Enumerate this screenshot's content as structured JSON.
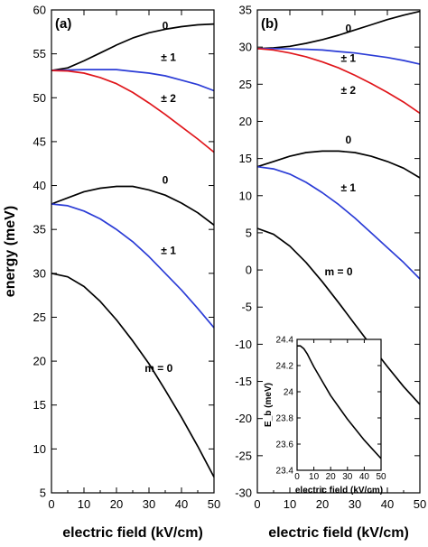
{
  "colors": {
    "black": "#000000",
    "blue": "#2b3cd6",
    "red": "#e0161b"
  },
  "chart_data": [
    {
      "type": "line",
      "panel_label": "(a)",
      "xlabel": "electric field (kV/cm)",
      "ylabel": "energy (meV)",
      "xlim": [
        0,
        50
      ],
      "ylim": [
        5,
        60
      ],
      "xticks": [
        0,
        10,
        20,
        30,
        40,
        50
      ],
      "yticks": [
        5,
        10,
        15,
        20,
        25,
        30,
        35,
        40,
        45,
        50,
        55,
        60
      ],
      "grid": false,
      "series": [
        {
          "name": "0",
          "color": "#000000",
          "label_at": [
            35,
            57.8
          ],
          "x": [
            0,
            5,
            10,
            15,
            20,
            25,
            30,
            35,
            40,
            45,
            50
          ],
          "y": [
            53.1,
            53.4,
            54.2,
            55.1,
            56.0,
            56.8,
            57.4,
            57.8,
            58.1,
            58.3,
            58.4
          ]
        },
        {
          "name": "± 1",
          "color": "#2b3cd6",
          "label_at": [
            36,
            54.2
          ],
          "x": [
            0,
            5,
            10,
            15,
            20,
            25,
            30,
            35,
            40,
            45,
            50
          ],
          "y": [
            53.1,
            53.15,
            53.2,
            53.2,
            53.2,
            53.0,
            52.8,
            52.5,
            52.0,
            51.5,
            50.8
          ]
        },
        {
          "name": "± 2",
          "color": "#e0161b",
          "label_at": [
            36,
            49.5
          ],
          "x": [
            0,
            5,
            10,
            15,
            20,
            25,
            30,
            35,
            40,
            45,
            50
          ],
          "y": [
            53.1,
            53.05,
            52.8,
            52.3,
            51.6,
            50.6,
            49.4,
            48.1,
            46.7,
            45.3,
            43.8
          ]
        },
        {
          "name": "0",
          "color": "#000000",
          "label_at": [
            35,
            40.2
          ],
          "x": [
            0,
            5,
            10,
            15,
            20,
            25,
            30,
            35,
            40,
            45,
            50
          ],
          "y": [
            37.9,
            38.6,
            39.3,
            39.7,
            39.9,
            39.9,
            39.5,
            38.9,
            38.0,
            36.9,
            35.5
          ]
        },
        {
          "name": "± 1",
          "color": "#2b3cd6",
          "label_at": [
            36,
            32.2
          ],
          "x": [
            0,
            5,
            10,
            15,
            20,
            25,
            30,
            35,
            40,
            45,
            50
          ],
          "y": [
            37.9,
            37.7,
            37.1,
            36.2,
            35.0,
            33.6,
            31.9,
            30.0,
            28.1,
            26.0,
            23.8
          ]
        },
        {
          "name": "m = 0",
          "color": "#000000",
          "label_at": [
            33,
            18.8
          ],
          "x": [
            0,
            5,
            10,
            15,
            20,
            25,
            30,
            35,
            40,
            45,
            50
          ],
          "y": [
            30.0,
            29.6,
            28.5,
            26.8,
            24.7,
            22.3,
            19.7,
            16.7,
            13.6,
            10.3,
            6.8
          ]
        }
      ]
    },
    {
      "type": "line",
      "panel_label": "(b)",
      "xlabel": "electric field (kV/cm)",
      "ylabel": "",
      "xlim": [
        0,
        50
      ],
      "ylim": [
        -30,
        35
      ],
      "xticks": [
        0,
        10,
        20,
        30,
        40,
        50
      ],
      "yticks": [
        -30,
        -25,
        -20,
        -15,
        -10,
        -5,
        0,
        5,
        10,
        15,
        20,
        25,
        30,
        35
      ],
      "grid": false,
      "series": [
        {
          "name": "0",
          "color": "#000000",
          "label_at": [
            28,
            32.0
          ],
          "x": [
            0,
            5,
            10,
            15,
            20,
            25,
            30,
            35,
            40,
            45,
            50
          ],
          "y": [
            29.8,
            29.9,
            30.1,
            30.5,
            31.0,
            31.6,
            32.3,
            33.0,
            33.7,
            34.3,
            34.8
          ]
        },
        {
          "name": "± 1",
          "color": "#2b3cd6",
          "label_at": [
            28,
            28.0
          ],
          "x": [
            0,
            5,
            10,
            15,
            20,
            25,
            30,
            35,
            40,
            45,
            50
          ],
          "y": [
            29.8,
            29.8,
            29.75,
            29.7,
            29.6,
            29.4,
            29.2,
            28.9,
            28.6,
            28.2,
            27.7
          ]
        },
        {
          "name": "± 2",
          "color": "#e0161b",
          "label_at": [
            28,
            23.7
          ],
          "x": [
            0,
            5,
            10,
            15,
            20,
            25,
            30,
            35,
            40,
            45,
            50
          ],
          "y": [
            29.8,
            29.6,
            29.2,
            28.7,
            28.0,
            27.2,
            26.2,
            25.1,
            23.9,
            22.6,
            21.1
          ]
        },
        {
          "name": "0",
          "color": "#000000",
          "label_at": [
            28,
            17.0
          ],
          "x": [
            0,
            5,
            10,
            15,
            20,
            25,
            30,
            35,
            40,
            45,
            50
          ],
          "y": [
            13.9,
            14.6,
            15.3,
            15.8,
            16.0,
            16.0,
            15.8,
            15.3,
            14.6,
            13.7,
            12.4
          ]
        },
        {
          "name": "± 1",
          "color": "#2b3cd6",
          "label_at": [
            28,
            10.6
          ],
          "x": [
            0,
            5,
            10,
            15,
            20,
            25,
            30,
            35,
            40,
            45,
            50
          ],
          "y": [
            13.9,
            13.6,
            12.9,
            11.8,
            10.4,
            8.8,
            7.0,
            5.0,
            3.0,
            1.0,
            -1.2
          ]
        },
        {
          "name": "m = 0",
          "color": "#000000",
          "label_at": [
            25,
            -0.7
          ],
          "x": [
            0,
            5,
            10,
            15,
            20,
            25,
            30,
            35,
            40,
            45,
            50
          ],
          "y": [
            5.6,
            4.8,
            3.2,
            1.0,
            -1.6,
            -4.4,
            -7.3,
            -10.2,
            -13.0,
            -15.7,
            -18.1
          ]
        }
      ]
    },
    {
      "type": "line",
      "panel_label": "",
      "xlabel": "electric field (kV/cm)",
      "ylabel": "E_b (meV)",
      "xlim": [
        0,
        50
      ],
      "ylim": [
        23.4,
        24.4
      ],
      "xticks": [
        0,
        10,
        20,
        30,
        40,
        50
      ],
      "yticks": [
        23.4,
        23.6,
        23.8,
        24.0,
        24.2,
        24.4
      ],
      "grid": false,
      "series": [
        {
          "name": "",
          "color": "#000000",
          "x": [
            0,
            2,
            4,
            6,
            8,
            10,
            15,
            20,
            25,
            30,
            35,
            40,
            45,
            50
          ],
          "y": [
            24.35,
            24.35,
            24.33,
            24.29,
            24.24,
            24.19,
            24.08,
            23.97,
            23.88,
            23.79,
            23.71,
            23.63,
            23.56,
            23.49
          ]
        }
      ]
    }
  ]
}
